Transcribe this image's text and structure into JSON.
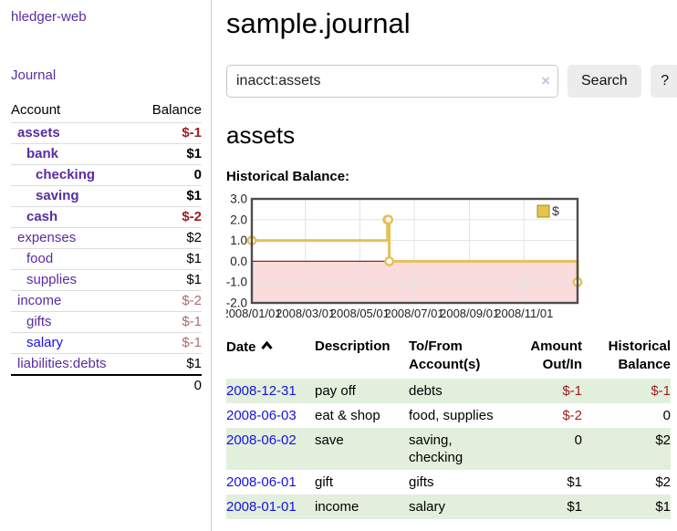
{
  "sidebar": {
    "brand": "hledger-web",
    "nav": {
      "journal": "Journal"
    },
    "accounts_table": {
      "headers": {
        "account": "Account",
        "balance": "Balance"
      },
      "rows": [
        {
          "name": "assets",
          "balance": "$-1",
          "indent": 0,
          "bold": true,
          "negative": "strong"
        },
        {
          "name": "bank",
          "balance": "$1",
          "indent": 1,
          "bold": true,
          "negative": ""
        },
        {
          "name": "checking",
          "balance": "0",
          "indent": 2,
          "bold": true,
          "negative": ""
        },
        {
          "name": "saving",
          "balance": "$1",
          "indent": 2,
          "bold": true,
          "negative": ""
        },
        {
          "name": "cash",
          "balance": "$-2",
          "indent": 1,
          "bold": true,
          "negative": "strong"
        },
        {
          "name": "expenses",
          "balance": "$2",
          "indent": 0,
          "bold": false,
          "negative": ""
        },
        {
          "name": "food",
          "balance": "$1",
          "indent": 1,
          "bold": false,
          "negative": ""
        },
        {
          "name": "supplies",
          "balance": "$1",
          "indent": 1,
          "bold": false,
          "negative": ""
        },
        {
          "name": "income",
          "balance": "$-2",
          "indent": 0,
          "bold": false,
          "negative": "muted"
        },
        {
          "name": "gifts",
          "balance": "$-1",
          "indent": 1,
          "bold": false,
          "negative": "muted"
        },
        {
          "name": "salary",
          "balance": "$-1",
          "indent": 1,
          "bold": false,
          "negative": "muted",
          "link_color": "blue"
        },
        {
          "name": "liabilities:debts",
          "balance": "$1",
          "indent": 0,
          "bold": false,
          "negative": ""
        }
      ],
      "total": "0"
    }
  },
  "header": {
    "title": "sample.journal"
  },
  "search": {
    "value": "inacct:assets",
    "clear_icon": "×",
    "button_label": "Search",
    "help_label": "?"
  },
  "account_page": {
    "heading": "assets",
    "chart_title": "Historical Balance:"
  },
  "chart_data": {
    "type": "line",
    "style": "step-after",
    "title": "Historical Balance:",
    "series": [
      {
        "name": "$",
        "points": [
          {
            "date": "2008-01-01",
            "value": 1
          },
          {
            "date": "2008-06-01",
            "value": 2
          },
          {
            "date": "2008-06-02",
            "value": 2
          },
          {
            "date": "2008-06-03",
            "value": 0
          },
          {
            "date": "2008-12-31",
            "value": -1
          }
        ]
      }
    ],
    "xlim": [
      "2008-01-01",
      "2008-12-31"
    ],
    "ylim": [
      -2,
      3
    ],
    "x_ticks": [
      "2008/01/01",
      "2008/03/01",
      "2008/05/01",
      "2008/07/01",
      "2008/09/01",
      "2008/11/01"
    ],
    "y_ticks": [
      3.0,
      2.0,
      1.0,
      0.0,
      -1.0,
      -2.0
    ],
    "grid": true,
    "legend": {
      "label": "$",
      "position": "top-right"
    },
    "colors": {
      "line": "#e5c158",
      "marker_fill": "#ffffff",
      "negative_region_fill": "#fadcdc",
      "zero_line": "#a01c1c",
      "border": "#4d4d4d",
      "gridline": "#e3e3e3",
      "legend_square": "#e8c44a",
      "legend_square_border": "#a08a2e"
    }
  },
  "transactions": {
    "columns": {
      "date": "Date",
      "description": "Description",
      "accounts": "To/From Account(s)",
      "amount": "Amount Out/In",
      "balance": "Historical Balance"
    },
    "sort": {
      "column": "date",
      "direction": "ascending"
    },
    "rows": [
      {
        "date": "2008-12-31",
        "description": "pay off",
        "accounts": "debts",
        "amount": "$-1",
        "balance": "$-1",
        "amount_negative": true,
        "balance_negative": true
      },
      {
        "date": "2008-06-03",
        "description": "eat & shop",
        "accounts": "food, supplies",
        "amount": "$-2",
        "balance": "0",
        "amount_negative": true,
        "balance_negative": false
      },
      {
        "date": "2008-06-02",
        "description": "save",
        "accounts": "saving, checking",
        "amount": "0",
        "balance": "$2",
        "amount_negative": false,
        "balance_negative": false
      },
      {
        "date": "2008-06-01",
        "description": "gift",
        "accounts": "gifts",
        "amount": "$1",
        "balance": "$2",
        "amount_negative": false,
        "balance_negative": false
      },
      {
        "date": "2008-01-01",
        "description": "income",
        "accounts": "salary",
        "amount": "$1",
        "balance": "$1",
        "amount_negative": false,
        "balance_negative": false
      }
    ]
  }
}
